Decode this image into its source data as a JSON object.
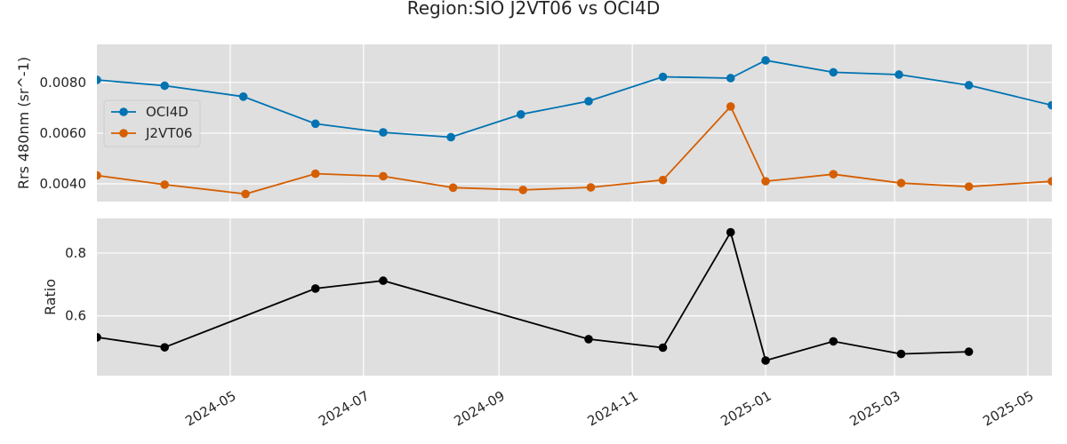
{
  "chart_data": {
    "type": "line",
    "title": "Region:SIO J2VT06 vs OCI4D",
    "x_range": [
      "2024-03-01",
      "2025-05-12"
    ],
    "x_ticks": [
      "2024-05",
      "2024-07",
      "2024-09",
      "2024-11",
      "2025-01",
      "2025-03",
      "2025-05"
    ],
    "grid": true,
    "panels": [
      {
        "id": "top",
        "ylabel": "Rrs 480nm (sr^-1)",
        "ylim": [
          0.0033,
          0.0095
        ],
        "yticks": [
          "0.0040",
          "0.0060",
          "0.0080"
        ],
        "legend": "upper-left",
        "series": [
          {
            "name": "OCI4D",
            "color": "#0173b2",
            "points": [
              {
                "x": "2024-03-01",
                "y": 0.0081
              },
              {
                "x": "2024-04-01",
                "y": 0.00787
              },
              {
                "x": "2024-05-07",
                "y": 0.00744
              },
              {
                "x": "2024-06-09",
                "y": 0.00637
              },
              {
                "x": "2024-07-10",
                "y": 0.00603
              },
              {
                "x": "2024-08-10",
                "y": 0.00584
              },
              {
                "x": "2024-09-11",
                "y": 0.00674
              },
              {
                "x": "2024-10-12",
                "y": 0.00726
              },
              {
                "x": "2024-11-15",
                "y": 0.00822
              },
              {
                "x": "2024-12-16",
                "y": 0.00817
              },
              {
                "x": "2025-01-01",
                "y": 0.00887
              },
              {
                "x": "2025-02-01",
                "y": 0.0084
              },
              {
                "x": "2025-03-03",
                "y": 0.00831
              },
              {
                "x": "2025-04-04",
                "y": 0.00789
              },
              {
                "x": "2025-05-12",
                "y": 0.0071
              }
            ]
          },
          {
            "name": "J2VT06",
            "color": "#d55e00",
            "points": [
              {
                "x": "2024-03-01",
                "y": 0.00433
              },
              {
                "x": "2024-04-01",
                "y": 0.00397
              },
              {
                "x": "2024-05-08",
                "y": 0.0036
              },
              {
                "x": "2024-06-09",
                "y": 0.0044
              },
              {
                "x": "2024-07-10",
                "y": 0.0043
              },
              {
                "x": "2024-08-11",
                "y": 0.00385
              },
              {
                "x": "2024-09-12",
                "y": 0.00376
              },
              {
                "x": "2024-10-13",
                "y": 0.00386
              },
              {
                "x": "2024-11-15",
                "y": 0.00415
              },
              {
                "x": "2024-12-16",
                "y": 0.00705
              },
              {
                "x": "2025-01-01",
                "y": 0.0041
              },
              {
                "x": "2025-02-01",
                "y": 0.00438
              },
              {
                "x": "2025-03-04",
                "y": 0.00403
              },
              {
                "x": "2025-04-04",
                "y": 0.00389
              },
              {
                "x": "2025-05-12",
                "y": 0.0041
              }
            ]
          }
        ]
      },
      {
        "id": "bottom",
        "ylabel": "Ratio",
        "ylim": [
          0.41,
          0.91
        ],
        "yticks": [
          "0.6",
          "0.8"
        ],
        "series": [
          {
            "name": "",
            "color": "#000000",
            "points": [
              {
                "x": "2024-03-01",
                "y": 0.532
              },
              {
                "x": "2024-04-01",
                "y": 0.5
              },
              {
                "x": "2024-06-09",
                "y": 0.687
              },
              {
                "x": "2024-07-10",
                "y": 0.712
              },
              {
                "x": "2024-10-12",
                "y": 0.526
              },
              {
                "x": "2024-11-15",
                "y": 0.499
              },
              {
                "x": "2024-12-16",
                "y": 0.866
              },
              {
                "x": "2025-01-01",
                "y": 0.458
              },
              {
                "x": "2025-02-01",
                "y": 0.519
              },
              {
                "x": "2025-03-04",
                "y": 0.479
              },
              {
                "x": "2025-04-04",
                "y": 0.486
              }
            ]
          }
        ]
      }
    ]
  }
}
